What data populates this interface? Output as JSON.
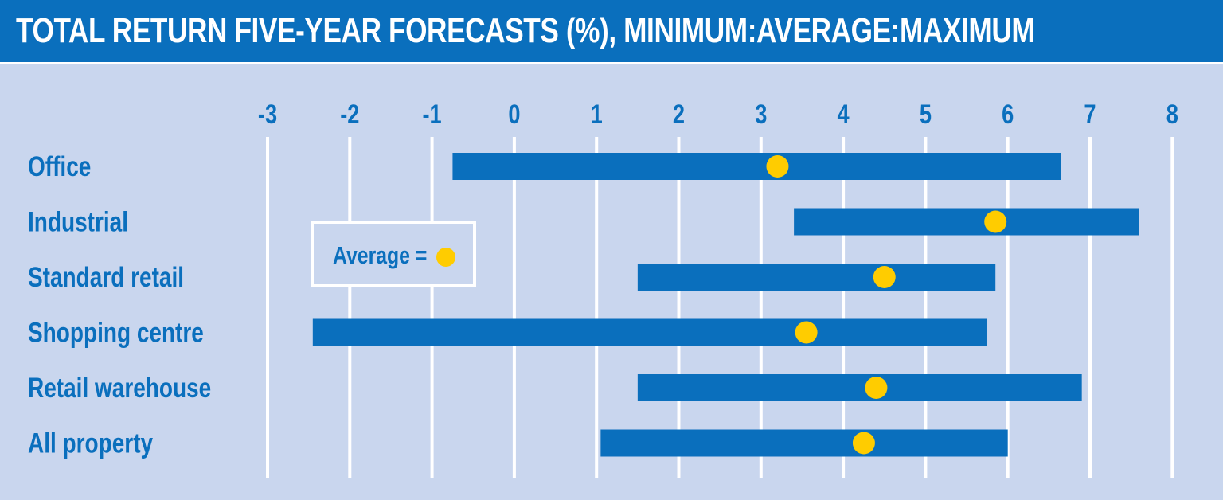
{
  "title": "TOTAL RETURN FIVE-YEAR FORECASTS (%), MINIMUM:AVERAGE:MAXIMUM",
  "legend": {
    "label": "Average ="
  },
  "colors": {
    "background": "#c9d6ee",
    "header": "#0a6fbd",
    "bar": "#0a6fbd",
    "average": "#ffcc00",
    "grid": "#ffffff"
  },
  "chart_data": {
    "type": "bar",
    "orientation": "horizontal-range",
    "title": "TOTAL RETURN FIVE-YEAR FORECASTS (%), MINIMUM:AVERAGE:MAXIMUM",
    "xlim": [
      -3,
      8
    ],
    "xticks": [
      "-3",
      "-2",
      "-1",
      "0",
      "1",
      "2",
      "3",
      "4",
      "5",
      "6",
      "7",
      "8"
    ],
    "grid": true,
    "legend_position": "left",
    "categories": [
      "Office",
      "Industrial",
      "Standard retail",
      "Shopping centre",
      "Retail warehouse",
      "All property"
    ],
    "series": [
      {
        "name": "Minimum",
        "values": [
          -0.75,
          3.4,
          1.5,
          -2.45,
          1.5,
          1.05
        ]
      },
      {
        "name": "Average",
        "values": [
          3.2,
          5.85,
          4.5,
          3.55,
          4.4,
          4.25
        ]
      },
      {
        "name": "Maximum",
        "values": [
          6.65,
          7.6,
          5.85,
          5.75,
          6.9,
          6.0
        ]
      }
    ]
  }
}
